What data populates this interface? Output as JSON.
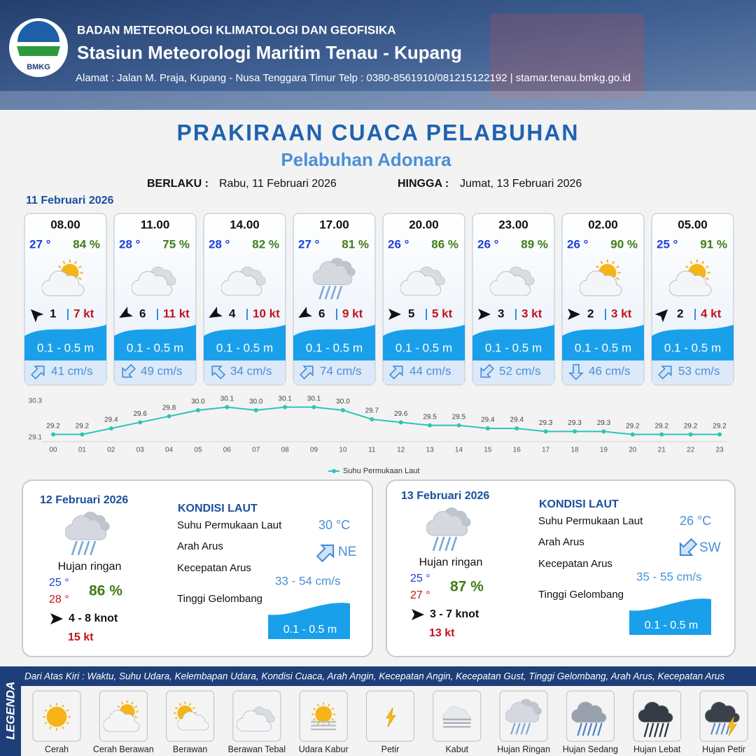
{
  "header": {
    "logo": "BMKG",
    "agency": "BADAN METEOROLOGI KLIMATOLOGI DAN GEOFISIKA",
    "station": "Stasiun Meteorologi Maritim Tenau - Kupang",
    "address": "Alamat : Jalan M. Praja, Kupang - Nusa Tenggara Timur Telp : 0380-8561910/081215122192  | stamar.tenau.bmkg.go.id"
  },
  "title": "PRAKIRAAN CUACA PELABUHAN",
  "subtitle": "Pelabuhan Adonara",
  "validity": {
    "from_label": "BERLAKU :",
    "from": "Rabu, 11 Februari 2026",
    "to_label": "HINGGA :",
    "to": "Jumat, 13 Februari 2026"
  },
  "day": "11 Februari 2026",
  "forecasts": [
    {
      "time": "08.00",
      "temperature": "27 °",
      "humidity": "84 %",
      "wind": "1",
      "gust": "7 kt",
      "wave": "0.1 - 0.5 m",
      "current": "41 cm/s"
    },
    {
      "time": "11.00",
      "temperature": "28 °",
      "humidity": "75 %",
      "wind": "6",
      "gust": "11 kt",
      "wave": "0.1 - 0.5 m",
      "current": "49 cm/s"
    },
    {
      "time": "14.00",
      "temperature": "28 °",
      "humidity": "82 %",
      "wind": "4",
      "gust": "10 kt",
      "wave": "0.1 - 0.5 m",
      "current": "34 cm/s"
    },
    {
      "time": "17.00",
      "temperature": "27 °",
      "humidity": "81 %",
      "wind": "6",
      "gust": "9 kt",
      "wave": "0.1 - 0.5 m",
      "current": "74 cm/s"
    },
    {
      "time": "20.00",
      "temperature": "26 °",
      "humidity": "86 %",
      "wind": "5",
      "gust": "5 kt",
      "wave": "0.1 - 0.5 m",
      "current": "44 cm/s"
    },
    {
      "time": "23.00",
      "temperature": "26 °",
      "humidity": "89 %",
      "wind": "3",
      "gust": "3 kt",
      "wave": "0.1 - 0.5 m",
      "current": "52 cm/s"
    },
    {
      "time": "02.00",
      "temperature": "26 °",
      "humidity": "90 %",
      "wind": "2",
      "gust": "3 kt",
      "wave": "0.1 - 0.5 m",
      "current": "46 cm/s"
    },
    {
      "time": "05.00",
      "temperature": "25 °",
      "humidity": "91 %",
      "wind": "2",
      "gust": "4 kt",
      "wave": "0.1 - 0.5 m",
      "current": "53 cm/s"
    }
  ],
  "chart_data": {
    "type": "line",
    "categories": [
      "00",
      "01",
      "02",
      "03",
      "04",
      "05",
      "06",
      "07",
      "08",
      "09",
      "10",
      "11",
      "12",
      "13",
      "14",
      "15",
      "16",
      "17",
      "18",
      "19",
      "20",
      "21",
      "22",
      "23"
    ],
    "series": [
      {
        "name": "Suhu Permukaan Laut",
        "color": "#2ec4b6",
        "values": [
          29.2,
          29.2,
          29.4,
          29.6,
          29.8,
          30.0,
          30.1,
          30.0,
          30.1,
          30.1,
          30.0,
          29.7,
          29.6,
          29.5,
          29.5,
          29.4,
          29.4,
          29.3,
          29.3,
          29.3,
          29.2,
          29.2,
          29.2,
          29.2
        ],
        "value_labels": [
          "29.2",
          "29.2",
          "29.4",
          "29.6",
          "29.8",
          "30.0",
          "30.1",
          "30.0",
          "30.1",
          "30.1",
          "30.0",
          "29.7",
          "29.6",
          "29.5",
          "29.5",
          "29.4",
          "29.4",
          "29.3",
          "29.3",
          "29.3",
          "29.2",
          "29.2",
          "29.2",
          "29.2"
        ]
      }
    ],
    "ylim": [
      29.1,
      30.3
    ],
    "yticks": [
      29.1,
      30.3
    ],
    "grid": false,
    "legend": "bottom"
  },
  "summaries": [
    {
      "date": "12 Februari 2026",
      "condition": "Hujan ringan",
      "temp_min": "25 °",
      "temp_max": "28 °",
      "humidity": "86 %",
      "wind": "4  - 8 knot",
      "gust": "15 kt",
      "sea_heading": "KONDISI LAUT",
      "sea_labels": [
        "Suhu Permukaan Laut",
        "Arah Arus",
        "Kecepatan Arus",
        "Tinggi Gelombang"
      ],
      "sea_temperature": "30 °C",
      "current_direction": "NE",
      "current_speed": "33 - 54 cm/s",
      "wave": "0.1 - 0.5 m"
    },
    {
      "date": "13 Februari 2026",
      "condition": "Hujan ringan",
      "temp_min": "25 °",
      "temp_max": "27 °",
      "humidity": "87 %",
      "wind": "3  - 7 knot",
      "gust": "13 kt",
      "sea_heading": "KONDISI LAUT",
      "sea_labels": [
        "Suhu Permukaan Laut",
        "Arah Arus",
        "Kecepatan Arus",
        "Tinggi Gelombang"
      ],
      "sea_temperature": "26 °C",
      "current_direction": "SW",
      "current_speed": "35 - 55 cm/s",
      "wave": "0.1 - 0.5 m"
    }
  ],
  "legend": {
    "title": "LEGENDA",
    "description": "Dari Atas Kiri : Waktu, Suhu Udara, Kelembapan Udara, Kondisi Cuaca, Arah Angin, Kecepatan Angin, Kecepatan Gust, Tinggi Gelombang, Arah Arus, Kecepatan Arus",
    "items": [
      "Cerah",
      "Cerah Berawan",
      "Berawan",
      "Berawan Tebal",
      "Udara Kabur",
      "Petir",
      "Kabut",
      "Hujan Ringan",
      "Hujan Sedang",
      "Hujan Lebat",
      "Hujan Petir"
    ]
  }
}
